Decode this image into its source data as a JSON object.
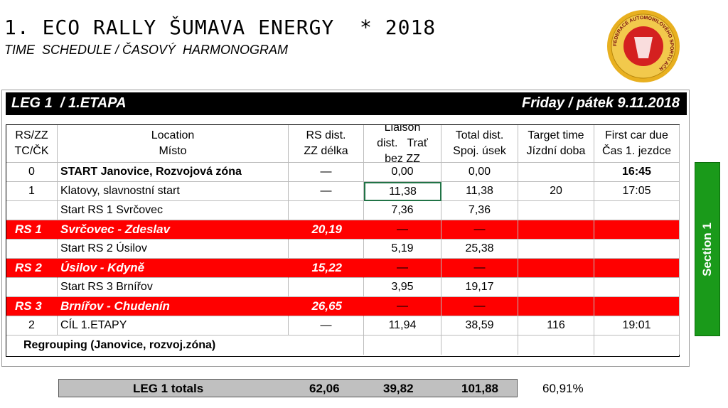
{
  "header": {
    "title": "1. ECO RALLY ŠUMAVA ENERGY  * 2018",
    "subtitle": "TIME  SCHEDULE / ČASOVÝ  HARMONOGRAM",
    "logo_text": "FEDERACE AUTOMOBILOVÉHO SPORTU AČR"
  },
  "leg": {
    "left": "LEG 1  / 1.ETAPA",
    "right": "Friday / pátek 9.11.2018"
  },
  "table": {
    "columns": [
      [
        "RS/ZZ",
        "TC/ČK"
      ],
      [
        "Location",
        "Místo"
      ],
      [
        "RS dist.",
        "ZZ délka"
      ],
      [
        "Liaison",
        "dist.   Trať",
        "bez ZZ"
      ],
      [
        "Total dist.",
        "Spoj. úsek"
      ],
      [
        "Target time",
        "Jízdní doba"
      ],
      [
        "First car due",
        "Čas 1. jezdce"
      ]
    ],
    "rows": [
      {
        "cells": [
          "0",
          "START Janovice, Rozvojová zóna",
          "—",
          "0,00",
          "0,00",
          null,
          "16:45"
        ]
      },
      {
        "cells": [
          "1",
          "Klatovy, slavnostní start",
          "—",
          "11,38",
          "11,38",
          "20",
          "17:05"
        ]
      },
      {
        "cells": [
          null,
          "Start RS 1 Svrčovec",
          null,
          "7,36",
          "7,36",
          null,
          null
        ]
      },
      {
        "cells": [
          "RS 1",
          "Svrčovec - Zdeslav",
          "20,19",
          "—",
          "—",
          null,
          null
        ],
        "color": "#ff0000"
      },
      {
        "cells": [
          null,
          "Start RS 2 Úsilov",
          null,
          "5,19",
          "25,38",
          null,
          null
        ]
      },
      {
        "cells": [
          "RS 2",
          "Úsilov - Kdyně",
          "15,22",
          "—",
          "—",
          null,
          null
        ],
        "color": "#ff0000"
      },
      {
        "cells": [
          null,
          "Start RS 3 Brnířov",
          null,
          "3,95",
          "19,17",
          null,
          null
        ]
      },
      {
        "cells": [
          "RS 3",
          "Brnířov - Chudenín",
          "26,65",
          "—",
          "—",
          null,
          null
        ],
        "color": "#ff0000"
      },
      {
        "cells": [
          "2",
          "CÍL 1.ETAPY",
          "—",
          "11,94",
          "38,59",
          "116",
          "19:01"
        ]
      }
    ],
    "regrouping": "Regrouping (Janovice, rozvoj.zóna)"
  },
  "section": "Section 1",
  "totals": {
    "label": "LEG 1 totals",
    "rs": "62,06",
    "liaison": "39,82",
    "total": "101,88",
    "percent": "60,91%"
  }
}
